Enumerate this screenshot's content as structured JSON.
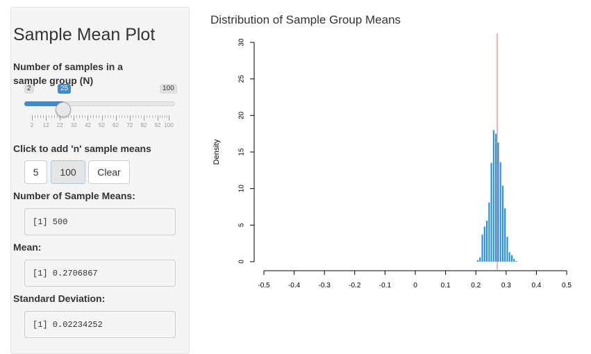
{
  "sidebar": {
    "title": "Sample Mean Plot",
    "slider": {
      "label": "Number of samples in a sample group (N)",
      "min": 2,
      "max": 100,
      "value": 25,
      "min_label": "2",
      "max_label": "100",
      "value_label": "25",
      "tick_labels": [
        "2",
        "12",
        "22",
        "32",
        "42",
        "52",
        "62",
        "72",
        "82",
        "92",
        "100"
      ]
    },
    "add_label": "Click to add 'n' sample means",
    "buttons": {
      "b5": "5",
      "b100": "100",
      "clear": "Clear"
    },
    "n_means_label": "Number of Sample Means:",
    "n_means_value": "[1] 500",
    "mean_label": "Mean:",
    "mean_value": "[1] 0.2706867",
    "sd_label": "Standard Deviation:",
    "sd_value": "[1] 0.02234252"
  },
  "chart_data": {
    "type": "bar",
    "title": "Distribution of Sample Group Means",
    "xlabel": "",
    "ylabel": "Density",
    "xlim": [
      -0.5,
      0.5
    ],
    "ylim": [
      0,
      30
    ],
    "x_ticks": [
      -0.5,
      -0.4,
      -0.3,
      -0.2,
      -0.1,
      0,
      0.1,
      0.2,
      0.3,
      0.4,
      0.5
    ],
    "x_tick_labels": [
      "-0.5",
      "-0.4",
      "-0.3",
      "-0.2",
      "-0.1",
      "0",
      "0.1",
      "0.2",
      "0.3",
      "0.4",
      "0.5"
    ],
    "y_ticks": [
      0,
      5,
      10,
      15,
      20,
      25,
      30
    ],
    "y_tick_labels": [
      "0",
      "5",
      "10",
      "15",
      "20",
      "25",
      "30"
    ],
    "bin_width": 0.0075,
    "bins_start": [
      0.2025,
      0.21,
      0.2175,
      0.225,
      0.2325,
      0.24,
      0.2475,
      0.255,
      0.2625,
      0.27,
      0.2775,
      0.285,
      0.2925,
      0.3,
      0.3075,
      0.315,
      0.3225,
      0.33
    ],
    "densities": [
      0.2,
      0.6,
      3.7,
      4.8,
      5.6,
      8.1,
      13.5,
      18.0,
      17.5,
      16.3,
      13.6,
      10.4,
      7.3,
      3.4,
      1.3,
      0.9,
      0.4,
      0.1
    ],
    "bar_color": "#1e8cec",
    "mean_line": {
      "x": 0.2706867,
      "color": "#e07070"
    }
  }
}
